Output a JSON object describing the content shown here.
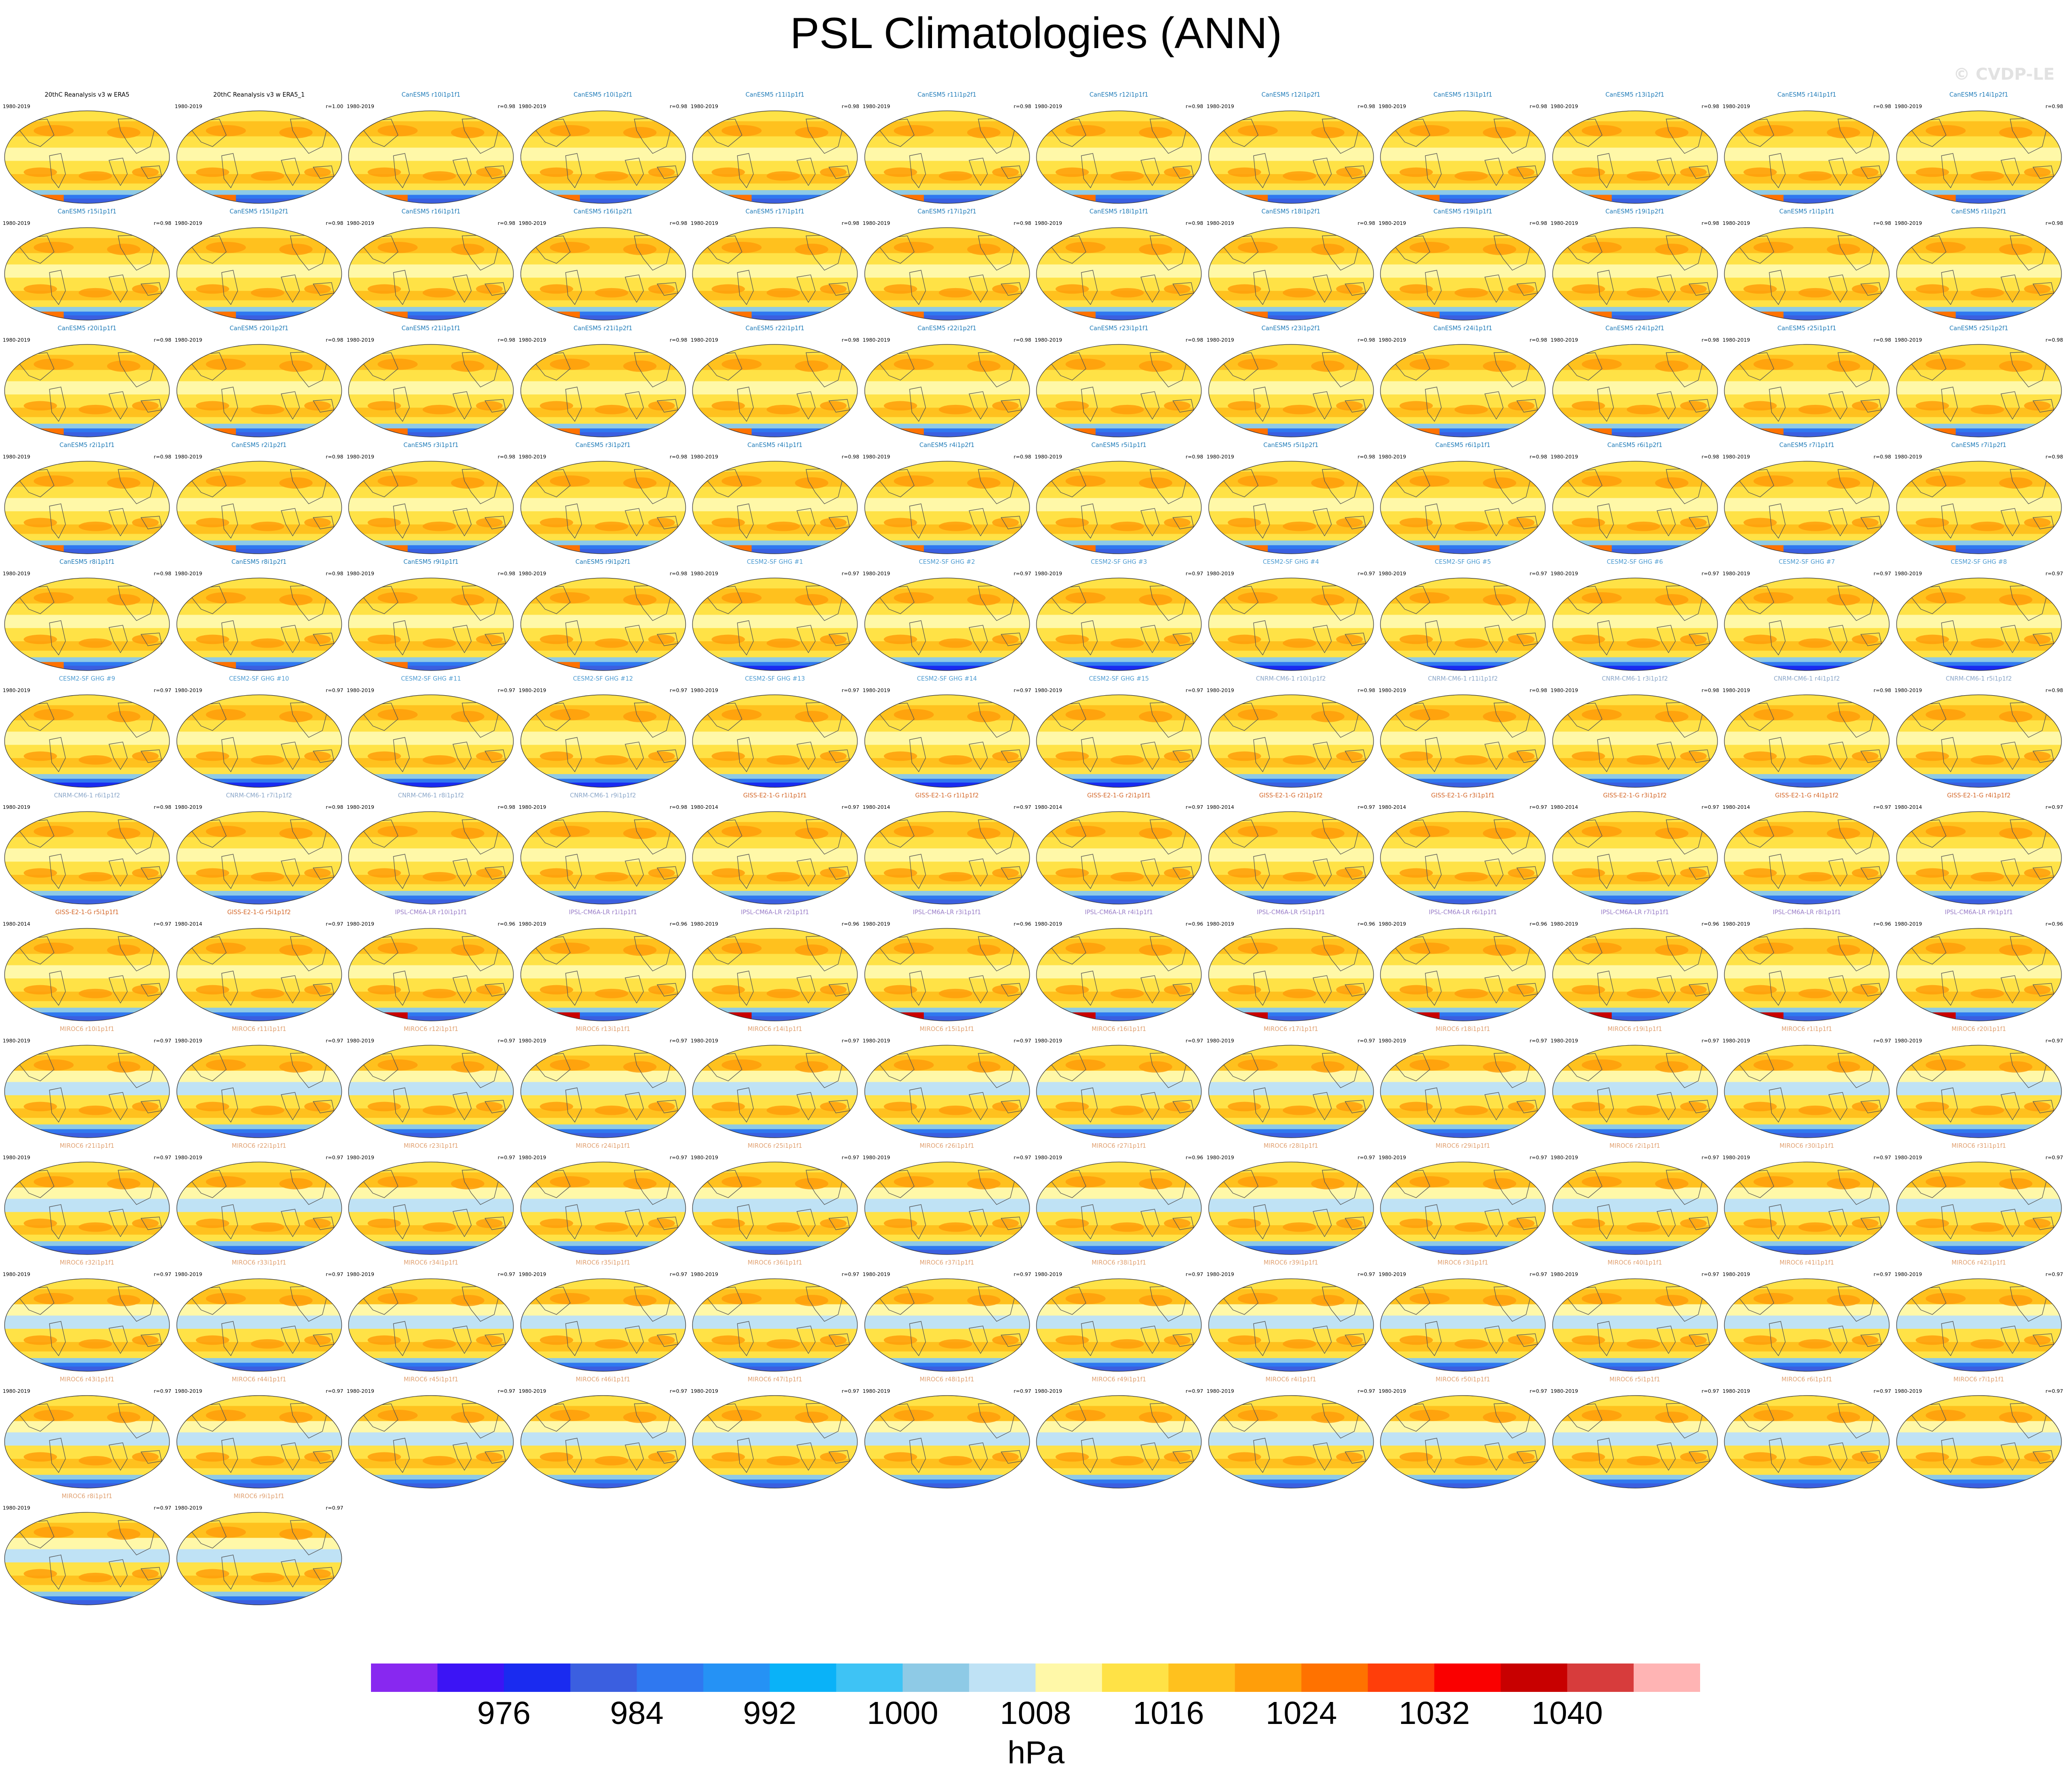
{
  "title": "PSL Climatologies (ANN)",
  "watermark": "© CVDP-LE",
  "colors": {
    "canesm5": "#1f7bb8",
    "cesm2": "#4d9bd1",
    "cnrm": "#8aa6c8",
    "giss": "#d4682a",
    "ipsl": "#9a7ec8",
    "miroc": "#e0a070",
    "obs": "#000000"
  },
  "colorbar": {
    "colors": [
      "#8828f0",
      "#3c14f5",
      "#1a2bf0",
      "#3b5fe0",
      "#2f78f0",
      "#2592f5",
      "#0ab2f8",
      "#3ec3f5",
      "#8ecae6",
      "#bfe2f5",
      "#fff8a8",
      "#ffe246",
      "#ffc11e",
      "#ff9e0a",
      "#ff7200",
      "#ff3e0a",
      "#fa0000",
      "#c80000",
      "#d73c3c",
      "#ffb4b4"
    ],
    "labels": [
      "976",
      "984",
      "992",
      "1000",
      "1008",
      "1016",
      "1024",
      "1032",
      "1040"
    ],
    "units": "hPa"
  },
  "panels": [
    {
      "title": "20thC Reanalysis v3 w ERA5",
      "years": "1980-2019",
      "corr": "",
      "group": "obs"
    },
    {
      "title": "20thC Reanalysis v3 w ERA5_1",
      "years": "1980-2019",
      "corr": "r=1.00",
      "group": "obs"
    },
    {
      "title": "CanESM5 r10i1p1f1",
      "years": "1980-2019",
      "corr": "r=0.98",
      "group": "canesm5"
    },
    {
      "title": "CanESM5 r10i1p2f1",
      "years": "1980-2019",
      "corr": "r=0.98",
      "group": "canesm5"
    },
    {
      "title": "CanESM5 r11i1p1f1",
      "years": "1980-2019",
      "corr": "r=0.98",
      "group": "canesm5"
    },
    {
      "title": "CanESM5 r11i1p2f1",
      "years": "1980-2019",
      "corr": "r=0.98",
      "group": "canesm5"
    },
    {
      "title": "CanESM5 r12i1p1f1",
      "years": "1980-2019",
      "corr": "r=0.98",
      "group": "canesm5"
    },
    {
      "title": "CanESM5 r12i1p2f1",
      "years": "1980-2019",
      "corr": "r=0.98",
      "group": "canesm5"
    },
    {
      "title": "CanESM5 r13i1p1f1",
      "years": "1980-2019",
      "corr": "r=0.98",
      "group": "canesm5"
    },
    {
      "title": "CanESM5 r13i1p2f1",
      "years": "1980-2019",
      "corr": "r=0.98",
      "group": "canesm5"
    },
    {
      "title": "CanESM5 r14i1p1f1",
      "years": "1980-2019",
      "corr": "r=0.98",
      "group": "canesm5"
    },
    {
      "title": "CanESM5 r14i1p2f1",
      "years": "1980-2019",
      "corr": "r=0.98",
      "group": "canesm5"
    },
    {
      "title": "CanESM5 r15i1p1f1",
      "years": "1980-2019",
      "corr": "r=0.98",
      "group": "canesm5"
    },
    {
      "title": "CanESM5 r15i1p2f1",
      "years": "1980-2019",
      "corr": "r=0.98",
      "group": "canesm5"
    },
    {
      "title": "CanESM5 r16i1p1f1",
      "years": "1980-2019",
      "corr": "r=0.98",
      "group": "canesm5"
    },
    {
      "title": "CanESM5 r16i1p2f1",
      "years": "1980-2019",
      "corr": "r=0.98",
      "group": "canesm5"
    },
    {
      "title": "CanESM5 r17i1p1f1",
      "years": "1980-2019",
      "corr": "r=0.98",
      "group": "canesm5"
    },
    {
      "title": "CanESM5 r17i1p2f1",
      "years": "1980-2019",
      "corr": "r=0.98",
      "group": "canesm5"
    },
    {
      "title": "CanESM5 r18i1p1f1",
      "years": "1980-2019",
      "corr": "r=0.98",
      "group": "canesm5"
    },
    {
      "title": "CanESM5 r18i1p2f1",
      "years": "1980-2019",
      "corr": "r=0.98",
      "group": "canesm5"
    },
    {
      "title": "CanESM5 r19i1p1f1",
      "years": "1980-2019",
      "corr": "r=0.98",
      "group": "canesm5"
    },
    {
      "title": "CanESM5 r19i1p2f1",
      "years": "1980-2019",
      "corr": "r=0.98",
      "group": "canesm5"
    },
    {
      "title": "CanESM5 r1i1p1f1",
      "years": "1980-2019",
      "corr": "r=0.98",
      "group": "canesm5"
    },
    {
      "title": "CanESM5 r1i1p2f1",
      "years": "1980-2019",
      "corr": "r=0.98",
      "group": "canesm5"
    },
    {
      "title": "CanESM5 r20i1p1f1",
      "years": "1980-2019",
      "corr": "r=0.98",
      "group": "canesm5"
    },
    {
      "title": "CanESM5 r20i1p2f1",
      "years": "1980-2019",
      "corr": "r=0.98",
      "group": "canesm5"
    },
    {
      "title": "CanESM5 r21i1p1f1",
      "years": "1980-2019",
      "corr": "r=0.98",
      "group": "canesm5"
    },
    {
      "title": "CanESM5 r21i1p2f1",
      "years": "1980-2019",
      "corr": "r=0.98",
      "group": "canesm5"
    },
    {
      "title": "CanESM5 r22i1p1f1",
      "years": "1980-2019",
      "corr": "r=0.98",
      "group": "canesm5"
    },
    {
      "title": "CanESM5 r22i1p2f1",
      "years": "1980-2019",
      "corr": "r=0.98",
      "group": "canesm5"
    },
    {
      "title": "CanESM5 r23i1p1f1",
      "years": "1980-2019",
      "corr": "r=0.98",
      "group": "canesm5"
    },
    {
      "title": "CanESM5 r23i1p2f1",
      "years": "1980-2019",
      "corr": "r=0.98",
      "group": "canesm5"
    },
    {
      "title": "CanESM5 r24i1p1f1",
      "years": "1980-2019",
      "corr": "r=0.98",
      "group": "canesm5"
    },
    {
      "title": "CanESM5 r24i1p2f1",
      "years": "1980-2019",
      "corr": "r=0.98",
      "group": "canesm5"
    },
    {
      "title": "CanESM5 r25i1p1f1",
      "years": "1980-2019",
      "corr": "r=0.98",
      "group": "canesm5"
    },
    {
      "title": "CanESM5 r25i1p2f1",
      "years": "1980-2019",
      "corr": "r=0.98",
      "group": "canesm5"
    },
    {
      "title": "CanESM5 r2i1p1f1",
      "years": "1980-2019",
      "corr": "r=0.98",
      "group": "canesm5"
    },
    {
      "title": "CanESM5 r2i1p2f1",
      "years": "1980-2019",
      "corr": "r=0.98",
      "group": "canesm5"
    },
    {
      "title": "CanESM5 r3i1p1f1",
      "years": "1980-2019",
      "corr": "r=0.98",
      "group": "canesm5"
    },
    {
      "title": "CanESM5 r3i1p2f1",
      "years": "1980-2019",
      "corr": "r=0.98",
      "group": "canesm5"
    },
    {
      "title": "CanESM5 r4i1p1f1",
      "years": "1980-2019",
      "corr": "r=0.98",
      "group": "canesm5"
    },
    {
      "title": "CanESM5 r4i1p2f1",
      "years": "1980-2019",
      "corr": "r=0.98",
      "group": "canesm5"
    },
    {
      "title": "CanESM5 r5i1p1f1",
      "years": "1980-2019",
      "corr": "r=0.98",
      "group": "canesm5"
    },
    {
      "title": "CanESM5 r5i1p2f1",
      "years": "1980-2019",
      "corr": "r=0.98",
      "group": "canesm5"
    },
    {
      "title": "CanESM5 r6i1p1f1",
      "years": "1980-2019",
      "corr": "r=0.98",
      "group": "canesm5"
    },
    {
      "title": "CanESM5 r6i1p2f1",
      "years": "1980-2019",
      "corr": "r=0.98",
      "group": "canesm5"
    },
    {
      "title": "CanESM5 r7i1p1f1",
      "years": "1980-2019",
      "corr": "r=0.98",
      "group": "canesm5"
    },
    {
      "title": "CanESM5 r7i1p2f1",
      "years": "1980-2019",
      "corr": "r=0.98",
      "group": "canesm5"
    },
    {
      "title": "CanESM5 r8i1p1f1",
      "years": "1980-2019",
      "corr": "r=0.98",
      "group": "canesm5"
    },
    {
      "title": "CanESM5 r8i1p2f1",
      "years": "1980-2019",
      "corr": "r=0.98",
      "group": "canesm5"
    },
    {
      "title": "CanESM5 r9i1p1f1",
      "years": "1980-2019",
      "corr": "r=0.98",
      "group": "canesm5"
    },
    {
      "title": "CanESM5 r9i1p2f1",
      "years": "1980-2019",
      "corr": "r=0.98",
      "group": "canesm5"
    },
    {
      "title": "CESM2-SF GHG #1",
      "years": "1980-2019",
      "corr": "r=0.97",
      "group": "cesm2"
    },
    {
      "title": "CESM2-SF GHG #2",
      "years": "1980-2019",
      "corr": "r=0.97",
      "group": "cesm2"
    },
    {
      "title": "CESM2-SF GHG #3",
      "years": "1980-2019",
      "corr": "r=0.97",
      "group": "cesm2"
    },
    {
      "title": "CESM2-SF GHG #4",
      "years": "1980-2019",
      "corr": "r=0.97",
      "group": "cesm2"
    },
    {
      "title": "CESM2-SF GHG #5",
      "years": "1980-2019",
      "corr": "r=0.97",
      "group": "cesm2"
    },
    {
      "title": "CESM2-SF GHG #6",
      "years": "1980-2019",
      "corr": "r=0.97",
      "group": "cesm2"
    },
    {
      "title": "CESM2-SF GHG #7",
      "years": "1980-2019",
      "corr": "r=0.97",
      "group": "cesm2"
    },
    {
      "title": "CESM2-SF GHG #8",
      "years": "1980-2019",
      "corr": "r=0.97",
      "group": "cesm2"
    },
    {
      "title": "CESM2-SF GHG #9",
      "years": "1980-2019",
      "corr": "r=0.97",
      "group": "cesm2"
    },
    {
      "title": "CESM2-SF GHG #10",
      "years": "1980-2019",
      "corr": "r=0.97",
      "group": "cesm2"
    },
    {
      "title": "CESM2-SF GHG #11",
      "years": "1980-2019",
      "corr": "r=0.97",
      "group": "cesm2"
    },
    {
      "title": "CESM2-SF GHG #12",
      "years": "1980-2019",
      "corr": "r=0.97",
      "group": "cesm2"
    },
    {
      "title": "CESM2-SF GHG #13",
      "years": "1980-2019",
      "corr": "r=0.97",
      "group": "cesm2"
    },
    {
      "title": "CESM2-SF GHG #14",
      "years": "1980-2019",
      "corr": "r=0.97",
      "group": "cesm2"
    },
    {
      "title": "CESM2-SF GHG #15",
      "years": "1980-2019",
      "corr": "r=0.97",
      "group": "cesm2"
    },
    {
      "title": "CNRM-CM6-1 r10i1p1f2",
      "years": "1980-2019",
      "corr": "r=0.98",
      "group": "cnrm"
    },
    {
      "title": "CNRM-CM6-1 r11i1p1f2",
      "years": "1980-2019",
      "corr": "r=0.98",
      "group": "cnrm"
    },
    {
      "title": "CNRM-CM6-1 r3i1p1f2",
      "years": "1980-2019",
      "corr": "r=0.98",
      "group": "cnrm"
    },
    {
      "title": "CNRM-CM6-1 r4i1p1f2",
      "years": "1980-2019",
      "corr": "r=0.98",
      "group": "cnrm"
    },
    {
      "title": "CNRM-CM6-1 r5i1p1f2",
      "years": "1980-2019",
      "corr": "r=0.98",
      "group": "cnrm"
    },
    {
      "title": "CNRM-CM6-1 r6i1p1f2",
      "years": "1980-2019",
      "corr": "r=0.98",
      "group": "cnrm"
    },
    {
      "title": "CNRM-CM6-1 r7i1p1f2",
      "years": "1980-2019",
      "corr": "r=0.98",
      "group": "cnrm"
    },
    {
      "title": "CNRM-CM6-1 r8i1p1f2",
      "years": "1980-2019",
      "corr": "r=0.98",
      "group": "cnrm"
    },
    {
      "title": "CNRM-CM6-1 r9i1p1f2",
      "years": "1980-2019",
      "corr": "r=0.98",
      "group": "cnrm"
    },
    {
      "title": "GISS-E2-1-G r1i1p1f1",
      "years": "1980-2014",
      "corr": "r=0.97",
      "group": "giss"
    },
    {
      "title": "GISS-E2-1-G r1i1p1f2",
      "years": "1980-2014",
      "corr": "r=0.97",
      "group": "giss"
    },
    {
      "title": "GISS-E2-1-G r2i1p1f1",
      "years": "1980-2014",
      "corr": "r=0.97",
      "group": "giss"
    },
    {
      "title": "GISS-E2-1-G r2i1p1f2",
      "years": "1980-2014",
      "corr": "r=0.97",
      "group": "giss"
    },
    {
      "title": "GISS-E2-1-G r3i1p1f1",
      "years": "1980-2014",
      "corr": "r=0.97",
      "group": "giss"
    },
    {
      "title": "GISS-E2-1-G r3i1p1f2",
      "years": "1980-2014",
      "corr": "r=0.97",
      "group": "giss"
    },
    {
      "title": "GISS-E2-1-G r4i1p1f2",
      "years": "1980-2014",
      "corr": "r=0.97",
      "group": "giss"
    },
    {
      "title": "GISS-E2-1-G r4i1p1f2",
      "years": "1980-2014",
      "corr": "r=0.97",
      "group": "giss"
    },
    {
      "title": "GISS-E2-1-G r5i1p1f1",
      "years": "1980-2014",
      "corr": "r=0.97",
      "group": "giss"
    },
    {
      "title": "GISS-E2-1-G r5i1p1f2",
      "years": "1980-2014",
      "corr": "r=0.97",
      "group": "giss"
    },
    {
      "title": "IPSL-CM6A-LR r10i1p1f1",
      "years": "1980-2019",
      "corr": "r=0.96",
      "group": "ipsl"
    },
    {
      "title": "IPSL-CM6A-LR r1i1p1f1",
      "years": "1980-2019",
      "corr": "r=0.96",
      "group": "ipsl"
    },
    {
      "title": "IPSL-CM6A-LR r2i1p1f1",
      "years": "1980-2019",
      "corr": "r=0.96",
      "group": "ipsl"
    },
    {
      "title": "IPSL-CM6A-LR r3i1p1f1",
      "years": "1980-2019",
      "corr": "r=0.96",
      "group": "ipsl"
    },
    {
      "title": "IPSL-CM6A-LR r4i1p1f1",
      "years": "1980-2019",
      "corr": "r=0.96",
      "group": "ipsl"
    },
    {
      "title": "IPSL-CM6A-LR r5i1p1f1",
      "years": "1980-2019",
      "corr": "r=0.96",
      "group": "ipsl"
    },
    {
      "title": "IPSL-CM6A-LR r6i1p1f1",
      "years": "1980-2019",
      "corr": "r=0.96",
      "group": "ipsl"
    },
    {
      "title": "IPSL-CM6A-LR r7i1p1f1",
      "years": "1980-2019",
      "corr": "r=0.96",
      "group": "ipsl"
    },
    {
      "title": "IPSL-CM6A-LR r8i1p1f1",
      "years": "1980-2019",
      "corr": "r=0.96",
      "group": "ipsl"
    },
    {
      "title": "IPSL-CM6A-LR r9i1p1f1",
      "years": "1980-2019",
      "corr": "r=0.96",
      "group": "ipsl"
    },
    {
      "title": "MIROC6 r10i1p1f1",
      "years": "1980-2019",
      "corr": "r=0.97",
      "group": "miroc"
    },
    {
      "title": "MIROC6 r11i1p1f1",
      "years": "1980-2019",
      "corr": "r=0.97",
      "group": "miroc"
    },
    {
      "title": "MIROC6 r12i1p1f1",
      "years": "1980-2019",
      "corr": "r=0.97",
      "group": "miroc"
    },
    {
      "title": "MIROC6 r13i1p1f1",
      "years": "1980-2019",
      "corr": "r=0.97",
      "group": "miroc"
    },
    {
      "title": "MIROC6 r14i1p1f1",
      "years": "1980-2019",
      "corr": "r=0.97",
      "group": "miroc"
    },
    {
      "title": "MIROC6 r15i1p1f1",
      "years": "1980-2019",
      "corr": "r=0.97",
      "group": "miroc"
    },
    {
      "title": "MIROC6 r16i1p1f1",
      "years": "1980-2019",
      "corr": "r=0.97",
      "group": "miroc"
    },
    {
      "title": "MIROC6 r17i1p1f1",
      "years": "1980-2019",
      "corr": "r=0.97",
      "group": "miroc"
    },
    {
      "title": "MIROC6 r18i1p1f1",
      "years": "1980-2019",
      "corr": "r=0.97",
      "group": "miroc"
    },
    {
      "title": "MIROC6 r19i1p1f1",
      "years": "1980-2019",
      "corr": "r=0.97",
      "group": "miroc"
    },
    {
      "title": "MIROC6 r1i1p1f1",
      "years": "1980-2019",
      "corr": "r=0.97",
      "group": "miroc"
    },
    {
      "title": "MIROC6 r20i1p1f1",
      "years": "1980-2019",
      "corr": "r=0.97",
      "group": "miroc"
    },
    {
      "title": "MIROC6 r21i1p1f1",
      "years": "1980-2019",
      "corr": "r=0.97",
      "group": "miroc"
    },
    {
      "title": "MIROC6 r22i1p1f1",
      "years": "1980-2019",
      "corr": "r=0.97",
      "group": "miroc"
    },
    {
      "title": "MIROC6 r23i1p1f1",
      "years": "1980-2019",
      "corr": "r=0.97",
      "group": "miroc"
    },
    {
      "title": "MIROC6 r24i1p1f1",
      "years": "1980-2019",
      "corr": "r=0.97",
      "group": "miroc"
    },
    {
      "title": "MIROC6 r25i1p1f1",
      "years": "1980-2019",
      "corr": "r=0.97",
      "group": "miroc"
    },
    {
      "title": "MIROC6 r26i1p1f1",
      "years": "1980-2019",
      "corr": "r=0.97",
      "group": "miroc"
    },
    {
      "title": "MIROC6 r27i1p1f1",
      "years": "1980-2019",
      "corr": "r=0.96",
      "group": "miroc"
    },
    {
      "title": "MIROC6 r28i1p1f1",
      "years": "1980-2019",
      "corr": "r=0.97",
      "group": "miroc"
    },
    {
      "title": "MIROC6 r29i1p1f1",
      "years": "1980-2019",
      "corr": "r=0.97",
      "group": "miroc"
    },
    {
      "title": "MIROC6 r2i1p1f1",
      "years": "1980-2019",
      "corr": "r=0.97",
      "group": "miroc"
    },
    {
      "title": "MIROC6 r30i1p1f1",
      "years": "1980-2019",
      "corr": "r=0.97",
      "group": "miroc"
    },
    {
      "title": "MIROC6 r31i1p1f1",
      "years": "1980-2019",
      "corr": "r=0.97",
      "group": "miroc"
    },
    {
      "title": "MIROC6 r32i1p1f1",
      "years": "1980-2019",
      "corr": "r=0.97",
      "group": "miroc"
    },
    {
      "title": "MIROC6 r33i1p1f1",
      "years": "1980-2019",
      "corr": "r=0.97",
      "group": "miroc"
    },
    {
      "title": "MIROC6 r34i1p1f1",
      "years": "1980-2019",
      "corr": "r=0.97",
      "group": "miroc"
    },
    {
      "title": "MIROC6 r35i1p1f1",
      "years": "1980-2019",
      "corr": "r=0.97",
      "group": "miroc"
    },
    {
      "title": "MIROC6 r36i1p1f1",
      "years": "1980-2019",
      "corr": "r=0.97",
      "group": "miroc"
    },
    {
      "title": "MIROC6 r37i1p1f1",
      "years": "1980-2019",
      "corr": "r=0.97",
      "group": "miroc"
    },
    {
      "title": "MIROC6 r38i1p1f1",
      "years": "1980-2019",
      "corr": "r=0.97",
      "group": "miroc"
    },
    {
      "title": "MIROC6 r39i1p1f1",
      "years": "1980-2019",
      "corr": "r=0.97",
      "group": "miroc"
    },
    {
      "title": "MIROC6 r3i1p1f1",
      "years": "1980-2019",
      "corr": "r=0.97",
      "group": "miroc"
    },
    {
      "title": "MIROC6 r40i1p1f1",
      "years": "1980-2019",
      "corr": "r=0.97",
      "group": "miroc"
    },
    {
      "title": "MIROC6 r41i1p1f1",
      "years": "1980-2019",
      "corr": "r=0.97",
      "group": "miroc"
    },
    {
      "title": "MIROC6 r42i1p1f1",
      "years": "1980-2019",
      "corr": "r=0.97",
      "group": "miroc"
    },
    {
      "title": "MIROC6 r43i1p1f1",
      "years": "1980-2019",
      "corr": "r=0.97",
      "group": "miroc"
    },
    {
      "title": "MIROC6 r44i1p1f1",
      "years": "1980-2019",
      "corr": "r=0.97",
      "group": "miroc"
    },
    {
      "title": "MIROC6 r45i1p1f1",
      "years": "1980-2019",
      "corr": "r=0.97",
      "group": "miroc"
    },
    {
      "title": "MIROC6 r46i1p1f1",
      "years": "1980-2019",
      "corr": "r=0.97",
      "group": "miroc"
    },
    {
      "title": "MIROC6 r47i1p1f1",
      "years": "1980-2019",
      "corr": "r=0.97",
      "group": "miroc"
    },
    {
      "title": "MIROC6 r48i1p1f1",
      "years": "1980-2019",
      "corr": "r=0.97",
      "group": "miroc"
    },
    {
      "title": "MIROC6 r49i1p1f1",
      "years": "1980-2019",
      "corr": "r=0.97",
      "group": "miroc"
    },
    {
      "title": "MIROC6 r4i1p1f1",
      "years": "1980-2019",
      "corr": "r=0.97",
      "group": "miroc"
    },
    {
      "title": "MIROC6 r50i1p1f1",
      "years": "1980-2019",
      "corr": "r=0.97",
      "group": "miroc"
    },
    {
      "title": "MIROC6 r5i1p1f1",
      "years": "1980-2019",
      "corr": "r=0.97",
      "group": "miroc"
    },
    {
      "title": "MIROC6 r6i1p1f1",
      "years": "1980-2019",
      "corr": "r=0.97",
      "group": "miroc"
    },
    {
      "title": "MIROC6 r7i1p1f1",
      "years": "1980-2019",
      "corr": "r=0.97",
      "group": "miroc"
    },
    {
      "title": "MIROC6 r8i1p1f1",
      "years": "1980-2019",
      "corr": "r=0.97",
      "group": "miroc"
    },
    {
      "title": "MIROC6 r9i1p1f1",
      "years": "1980-2019",
      "corr": "r=0.97",
      "group": "miroc"
    }
  ]
}
